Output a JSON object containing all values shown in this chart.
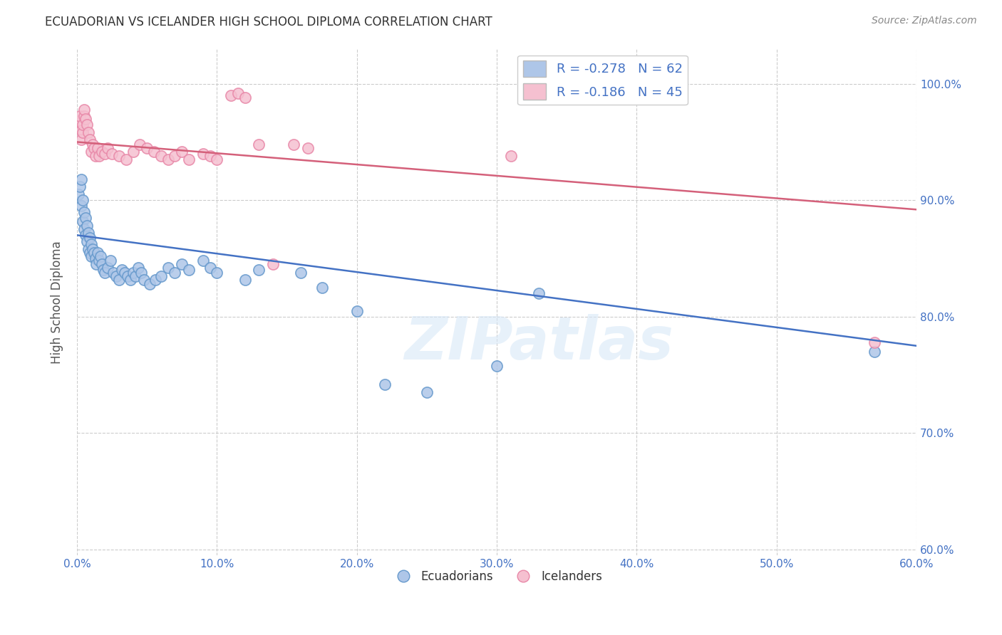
{
  "title": "ECUADORIAN VS ICELANDER HIGH SCHOOL DIPLOMA CORRELATION CHART",
  "source": "Source: ZipAtlas.com",
  "xlabel_ticks": [
    "0.0%",
    "10.0%",
    "20.0%",
    "30.0%",
    "40.0%",
    "50.0%",
    "60.0%"
  ],
  "ylabel_ticks": [
    "100.0%",
    "90.0%",
    "80.0%",
    "70.0%",
    "60.0%"
  ],
  "ylabel": "High School Diploma",
  "xlim": [
    0.0,
    0.6
  ],
  "ylim": [
    0.595,
    1.03
  ],
  "watermark": "ZIPatlas",
  "legend_blue_label": "R = -0.278   N = 62",
  "legend_pink_label": "R = -0.186   N = 45",
  "legend_bottom_blue": "Ecuadorians",
  "legend_bottom_pink": "Icelanders",
  "blue_fill_color": "#aec6e8",
  "blue_edge_color": "#6699cc",
  "pink_fill_color": "#f5c0d0",
  "pink_edge_color": "#e888a8",
  "blue_line_color": "#4472c4",
  "pink_line_color": "#d4607a",
  "blue_scatter": [
    [
      0.001,
      0.905
    ],
    [
      0.002,
      0.912
    ],
    [
      0.003,
      0.918
    ],
    [
      0.003,
      0.895
    ],
    [
      0.004,
      0.9
    ],
    [
      0.004,
      0.882
    ],
    [
      0.005,
      0.89
    ],
    [
      0.005,
      0.875
    ],
    [
      0.006,
      0.885
    ],
    [
      0.006,
      0.87
    ],
    [
      0.007,
      0.878
    ],
    [
      0.007,
      0.865
    ],
    [
      0.008,
      0.872
    ],
    [
      0.008,
      0.858
    ],
    [
      0.009,
      0.868
    ],
    [
      0.009,
      0.855
    ],
    [
      0.01,
      0.862
    ],
    [
      0.01,
      0.852
    ],
    [
      0.011,
      0.858
    ],
    [
      0.012,
      0.855
    ],
    [
      0.013,
      0.85
    ],
    [
      0.014,
      0.845
    ],
    [
      0.015,
      0.855
    ],
    [
      0.016,
      0.848
    ],
    [
      0.017,
      0.852
    ],
    [
      0.018,
      0.845
    ],
    [
      0.019,
      0.84
    ],
    [
      0.02,
      0.838
    ],
    [
      0.022,
      0.842
    ],
    [
      0.024,
      0.848
    ],
    [
      0.026,
      0.838
    ],
    [
      0.028,
      0.835
    ],
    [
      0.03,
      0.832
    ],
    [
      0.032,
      0.84
    ],
    [
      0.034,
      0.838
    ],
    [
      0.036,
      0.835
    ],
    [
      0.038,
      0.832
    ],
    [
      0.04,
      0.838
    ],
    [
      0.042,
      0.835
    ],
    [
      0.044,
      0.842
    ],
    [
      0.046,
      0.838
    ],
    [
      0.048,
      0.832
    ],
    [
      0.052,
      0.828
    ],
    [
      0.056,
      0.832
    ],
    [
      0.06,
      0.835
    ],
    [
      0.065,
      0.842
    ],
    [
      0.07,
      0.838
    ],
    [
      0.075,
      0.845
    ],
    [
      0.08,
      0.84
    ],
    [
      0.09,
      0.848
    ],
    [
      0.095,
      0.842
    ],
    [
      0.1,
      0.838
    ],
    [
      0.12,
      0.832
    ],
    [
      0.13,
      0.84
    ],
    [
      0.16,
      0.838
    ],
    [
      0.175,
      0.825
    ],
    [
      0.2,
      0.805
    ],
    [
      0.22,
      0.742
    ],
    [
      0.25,
      0.735
    ],
    [
      0.3,
      0.758
    ],
    [
      0.33,
      0.82
    ],
    [
      0.57,
      0.77
    ]
  ],
  "pink_scatter": [
    [
      0.001,
      0.968
    ],
    [
      0.002,
      0.972
    ],
    [
      0.003,
      0.96
    ],
    [
      0.003,
      0.952
    ],
    [
      0.004,
      0.958
    ],
    [
      0.004,
      0.965
    ],
    [
      0.005,
      0.972
    ],
    [
      0.005,
      0.978
    ],
    [
      0.006,
      0.97
    ],
    [
      0.007,
      0.965
    ],
    [
      0.008,
      0.958
    ],
    [
      0.009,
      0.952
    ],
    [
      0.01,
      0.942
    ],
    [
      0.011,
      0.948
    ],
    [
      0.012,
      0.945
    ],
    [
      0.013,
      0.938
    ],
    [
      0.015,
      0.945
    ],
    [
      0.016,
      0.938
    ],
    [
      0.018,
      0.942
    ],
    [
      0.02,
      0.94
    ],
    [
      0.022,
      0.945
    ],
    [
      0.025,
      0.94
    ],
    [
      0.03,
      0.938
    ],
    [
      0.035,
      0.935
    ],
    [
      0.04,
      0.942
    ],
    [
      0.045,
      0.948
    ],
    [
      0.05,
      0.945
    ],
    [
      0.055,
      0.942
    ],
    [
      0.06,
      0.938
    ],
    [
      0.065,
      0.935
    ],
    [
      0.07,
      0.938
    ],
    [
      0.075,
      0.942
    ],
    [
      0.08,
      0.935
    ],
    [
      0.09,
      0.94
    ],
    [
      0.095,
      0.938
    ],
    [
      0.1,
      0.935
    ],
    [
      0.11,
      0.99
    ],
    [
      0.115,
      0.992
    ],
    [
      0.12,
      0.988
    ],
    [
      0.13,
      0.948
    ],
    [
      0.14,
      0.845
    ],
    [
      0.155,
      0.948
    ],
    [
      0.165,
      0.945
    ],
    [
      0.31,
      0.938
    ],
    [
      0.57,
      0.778
    ]
  ],
  "blue_trend_x": [
    0.0,
    0.6
  ],
  "blue_trend_y": [
    0.87,
    0.775
  ],
  "pink_trend_x": [
    0.0,
    0.6
  ],
  "pink_trend_y": [
    0.95,
    0.892
  ]
}
